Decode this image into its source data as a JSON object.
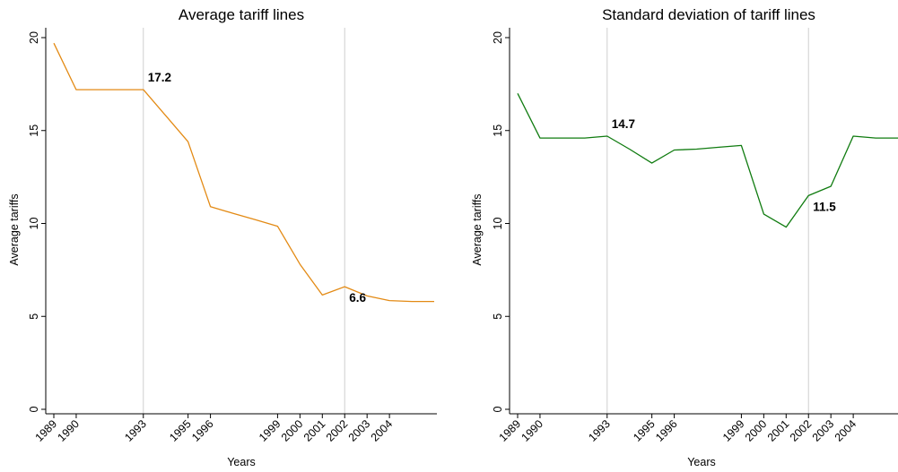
{
  "chart_data": [
    {
      "type": "line",
      "title": "Average tariff lines",
      "xlabel": "Years",
      "ylabel": "Average tariffs",
      "ylim": [
        0,
        20
      ],
      "yticks": [
        0,
        5,
        10,
        15,
        20
      ],
      "xticks": [
        "1989",
        "1990",
        "1993",
        "1995",
        "1996",
        "1999",
        "2000",
        "2001",
        "2002",
        "2003",
        "2004"
      ],
      "xlim": [
        1989,
        2006
      ],
      "reference_lines_x": [
        1993,
        2002
      ],
      "grid": false,
      "series": [
        {
          "color": "#e38a14",
          "x": [
            1989,
            1990,
            1991,
            1992,
            1993,
            1994,
            1995,
            1996,
            1997,
            1998,
            1999,
            2000,
            2001,
            2002,
            2003,
            2004,
            2005,
            2006
          ],
          "values": [
            19.7,
            17.2,
            17.2,
            17.2,
            17.2,
            15.8,
            14.4,
            10.9,
            10.55,
            10.2,
            9.85,
            7.8,
            6.15,
            6.6,
            6.1,
            5.85,
            5.8,
            5.8
          ]
        }
      ],
      "annotations": [
        {
          "text": "17.2",
          "x": 1993,
          "y": 17.2,
          "position": "upper-right"
        },
        {
          "text": "6.6",
          "x": 2002,
          "y": 6.6,
          "position": "lower-right"
        }
      ]
    },
    {
      "type": "line",
      "title": "Standard deviation of tariff lines",
      "xlabel": "Years",
      "ylabel": "Average tariffs",
      "ylim": [
        0,
        20
      ],
      "yticks": [
        0,
        5,
        10,
        15,
        20
      ],
      "xticks": [
        "1989",
        "1990",
        "1993",
        "1995",
        "1996",
        "1999",
        "2000",
        "2001",
        "2002",
        "2003",
        "2004"
      ],
      "xlim": [
        1989,
        2006
      ],
      "reference_lines_x": [
        1993,
        2002
      ],
      "grid": false,
      "series": [
        {
          "color": "#0f7b0f",
          "x": [
            1989,
            1990,
            1991,
            1992,
            1993,
            1994,
            1995,
            1996,
            1997,
            1998,
            1999,
            2000,
            2001,
            2002,
            2003,
            2004,
            2005,
            2006
          ],
          "values": [
            17.0,
            14.6,
            14.6,
            14.6,
            14.7,
            14.0,
            13.25,
            13.95,
            14.0,
            14.1,
            14.2,
            10.5,
            9.8,
            11.5,
            12.0,
            14.7,
            14.6,
            14.6
          ]
        }
      ],
      "annotations": [
        {
          "text": "14.7",
          "x": 1993,
          "y": 14.7,
          "position": "upper-right"
        },
        {
          "text": "11.5",
          "x": 2002,
          "y": 11.5,
          "position": "lower-right"
        }
      ]
    }
  ]
}
